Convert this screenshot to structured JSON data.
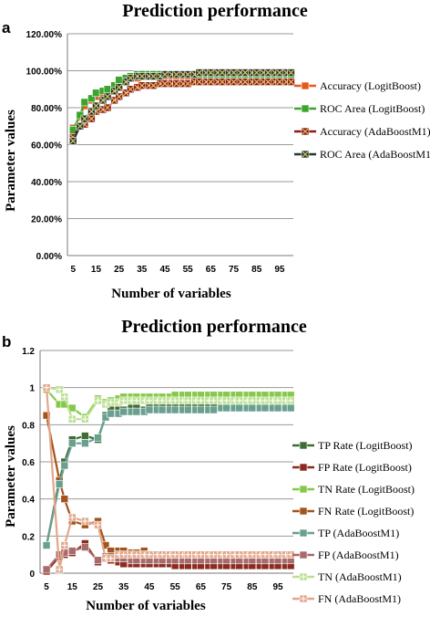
{
  "chart_data": [
    {
      "panel": "a",
      "type": "line",
      "title": "Prediction performance",
      "xlabel": "Number of  variables",
      "ylabel": "Parameter values",
      "x": [
        5,
        8,
        10,
        13,
        15,
        18,
        20,
        23,
        25,
        28,
        30,
        33,
        35,
        38,
        40,
        43,
        45,
        48,
        50,
        53,
        55,
        58,
        60,
        63,
        65,
        68,
        70,
        73,
        75,
        78,
        80,
        83,
        85,
        88,
        90,
        93,
        95,
        98,
        100
      ],
      "x_ticks": [
        5,
        15,
        25,
        35,
        45,
        55,
        65,
        75,
        85,
        95
      ],
      "y_ticks": [
        "0.00%",
        "20.00%",
        "40.00%",
        "60.00%",
        "80.00%",
        "100.00%",
        "120.00%"
      ],
      "ylim": [
        0,
        1.2
      ],
      "grid": true,
      "legend_position": "right",
      "series": [
        {
          "name": "Accuracy (LogitBoost)",
          "color": "#e8581c",
          "marker": "square",
          "values": [
            0.69,
            0.75,
            0.81,
            0.84,
            0.86,
            0.87,
            0.88,
            0.91,
            0.93,
            0.95,
            0.96,
            0.96,
            0.97,
            0.97,
            0.97,
            0.97,
            0.97,
            0.97,
            0.97,
            0.97,
            0.97,
            0.97,
            0.97,
            0.97,
            0.97,
            0.97,
            0.97,
            0.97,
            0.97,
            0.97,
            0.97,
            0.97,
            0.97,
            0.97,
            0.97,
            0.97,
            0.97,
            0.97,
            0.97
          ]
        },
        {
          "name": "ROC Area (LogitBoost)",
          "color": "#3aa52a",
          "marker": "square",
          "values": [
            0.68,
            0.76,
            0.83,
            0.85,
            0.88,
            0.89,
            0.9,
            0.92,
            0.95,
            0.96,
            0.97,
            0.98,
            0.98,
            0.98,
            0.98,
            0.98,
            0.98,
            0.98,
            0.98,
            0.98,
            0.98,
            0.98,
            0.98,
            0.98,
            0.98,
            0.98,
            0.98,
            0.98,
            0.98,
            0.98,
            0.98,
            0.98,
            0.98,
            0.98,
            0.98,
            0.98,
            0.98,
            0.98,
            0.98
          ]
        },
        {
          "name": "Accuracy (AdaBoostM1)",
          "color": "#8b1a1a",
          "marker": "x-square",
          "values": [
            0.64,
            0.7,
            0.71,
            0.74,
            0.78,
            0.79,
            0.8,
            0.84,
            0.86,
            0.88,
            0.9,
            0.91,
            0.92,
            0.92,
            0.92,
            0.93,
            0.93,
            0.93,
            0.93,
            0.93,
            0.93,
            0.94,
            0.94,
            0.94,
            0.94,
            0.94,
            0.94,
            0.94,
            0.94,
            0.94,
            0.94,
            0.94,
            0.94,
            0.94,
            0.94,
            0.94,
            0.94,
            0.94,
            0.94
          ]
        },
        {
          "name": "ROC Area (AdaBoostM1)",
          "color": "#1f3a33",
          "marker": "x-square",
          "values": [
            0.62,
            0.7,
            0.74,
            0.78,
            0.81,
            0.84,
            0.86,
            0.89,
            0.91,
            0.94,
            0.96,
            0.97,
            0.97,
            0.97,
            0.97,
            0.97,
            0.98,
            0.98,
            0.98,
            0.98,
            0.98,
            0.98,
            0.99,
            0.99,
            0.99,
            0.99,
            0.99,
            0.99,
            0.99,
            0.99,
            0.99,
            0.99,
            0.99,
            0.99,
            0.99,
            0.99,
            0.99,
            0.99,
            0.99
          ]
        }
      ]
    },
    {
      "panel": "b",
      "type": "line",
      "title": "Prediction performance",
      "xlabel": "Number of  variables",
      "ylabel": "Parameter values",
      "x": [
        5,
        10,
        12,
        15,
        20,
        25,
        28,
        30,
        33,
        35,
        38,
        40,
        43,
        45,
        48,
        50,
        53,
        55,
        58,
        60,
        63,
        65,
        68,
        70,
        73,
        75,
        78,
        80,
        83,
        85,
        88,
        90,
        93,
        95,
        98,
        100
      ],
      "x_ticks": [
        5,
        15,
        25,
        35,
        45,
        55,
        65,
        75,
        85,
        95
      ],
      "y_ticks": [
        "0",
        "0.2",
        "0.4",
        "0.6",
        "0.8",
        "1",
        "1.2"
      ],
      "ylim": [
        0,
        1.2
      ],
      "grid": true,
      "legend_position": "right",
      "series": [
        {
          "name": "TP Rate (LogitBoost)",
          "color": "#3f6b34",
          "marker": "square",
          "values": [
            0.15,
            0.5,
            0.6,
            0.72,
            0.74,
            0.72,
            0.85,
            0.88,
            0.88,
            0.88,
            0.89,
            0.89,
            0.88,
            0.9,
            0.9,
            0.9,
            0.9,
            0.9,
            0.9,
            0.9,
            0.9,
            0.9,
            0.91,
            0.91,
            0.91,
            0.91,
            0.91,
            0.91,
            0.91,
            0.91,
            0.92,
            0.92,
            0.92,
            0.92,
            0.92,
            0.92
          ]
        },
        {
          "name": "FP Rate (LogitBoost)",
          "color": "#8b2a1e",
          "marker": "square",
          "values": [
            0.01,
            0.09,
            0.1,
            0.11,
            0.16,
            0.06,
            0.08,
            0.07,
            0.06,
            0.05,
            0.05,
            0.05,
            0.05,
            0.05,
            0.05,
            0.05,
            0.05,
            0.04,
            0.04,
            0.04,
            0.04,
            0.04,
            0.04,
            0.04,
            0.04,
            0.04,
            0.04,
            0.04,
            0.04,
            0.04,
            0.04,
            0.04,
            0.04,
            0.04,
            0.04,
            0.04
          ]
        },
        {
          "name": "TN Rate (LogitBoost)",
          "color": "#86c94a",
          "marker": "square",
          "values": [
            0.99,
            0.91,
            0.91,
            0.89,
            0.84,
            0.94,
            0.92,
            0.93,
            0.94,
            0.95,
            0.95,
            0.95,
            0.95,
            0.95,
            0.95,
            0.95,
            0.95,
            0.96,
            0.96,
            0.96,
            0.96,
            0.96,
            0.96,
            0.96,
            0.96,
            0.96,
            0.96,
            0.96,
            0.96,
            0.96,
            0.96,
            0.96,
            0.96,
            0.96,
            0.96,
            0.96
          ]
        },
        {
          "name": "FN Rate (LogitBoost)",
          "color": "#a3541c",
          "marker": "square",
          "values": [
            0.85,
            0.5,
            0.4,
            0.28,
            0.26,
            0.28,
            0.15,
            0.12,
            0.12,
            0.12,
            0.11,
            0.11,
            0.12,
            0.1,
            0.1,
            0.1,
            0.1,
            0.1,
            0.1,
            0.1,
            0.1,
            0.1,
            0.09,
            0.09,
            0.09,
            0.09,
            0.09,
            0.09,
            0.09,
            0.09,
            0.08,
            0.08,
            0.08,
            0.08,
            0.08,
            0.08
          ]
        },
        {
          "name": "TP (AdaBoostM1)",
          "color": "#6aa08f",
          "marker": "square",
          "values": [
            0.15,
            0.48,
            0.58,
            0.7,
            0.7,
            0.73,
            0.84,
            0.86,
            0.86,
            0.87,
            0.87,
            0.87,
            0.87,
            0.88,
            0.88,
            0.88,
            0.88,
            0.88,
            0.88,
            0.88,
            0.88,
            0.88,
            0.88,
            0.88,
            0.89,
            0.89,
            0.89,
            0.89,
            0.89,
            0.89,
            0.89,
            0.89,
            0.89,
            0.89,
            0.89,
            0.89
          ]
        },
        {
          "name": "FP (AdaBoostM1)",
          "color": "#a86a6a",
          "marker": "square",
          "values": [
            0.02,
            0.1,
            0.11,
            0.12,
            0.14,
            0.07,
            0.09,
            0.09,
            0.08,
            0.08,
            0.07,
            0.07,
            0.07,
            0.07,
            0.07,
            0.07,
            0.07,
            0.07,
            0.07,
            0.07,
            0.07,
            0.07,
            0.07,
            0.07,
            0.07,
            0.07,
            0.07,
            0.07,
            0.07,
            0.07,
            0.07,
            0.07,
            0.07,
            0.07,
            0.07,
            0.07
          ]
        },
        {
          "name": "TN (AdaBoostM1)",
          "color": "#b9e08e",
          "marker": "plus-square",
          "values": [
            1.0,
            0.99,
            0.95,
            0.83,
            0.83,
            0.93,
            0.91,
            0.92,
            0.92,
            0.93,
            0.93,
            0.93,
            0.93,
            0.93,
            0.93,
            0.93,
            0.93,
            0.93,
            0.93,
            0.93,
            0.93,
            0.93,
            0.93,
            0.93,
            0.93,
            0.93,
            0.93,
            0.93,
            0.93,
            0.93,
            0.93,
            0.93,
            0.93,
            0.93,
            0.93,
            0.93
          ]
        },
        {
          "name": "FN (AdaBoostM1)",
          "color": "#e3a68a",
          "marker": "plus-square",
          "values": [
            1.0,
            0.02,
            0.15,
            0.3,
            0.28,
            0.26,
            0.08,
            0.08,
            0.1,
            0.1,
            0.1,
            0.1,
            0.1,
            0.1,
            0.1,
            0.1,
            0.1,
            0.1,
            0.1,
            0.1,
            0.1,
            0.1,
            0.1,
            0.1,
            0.1,
            0.1,
            0.1,
            0.1,
            0.1,
            0.1,
            0.1,
            0.1,
            0.1,
            0.1,
            0.1,
            0.1
          ]
        }
      ]
    }
  ]
}
